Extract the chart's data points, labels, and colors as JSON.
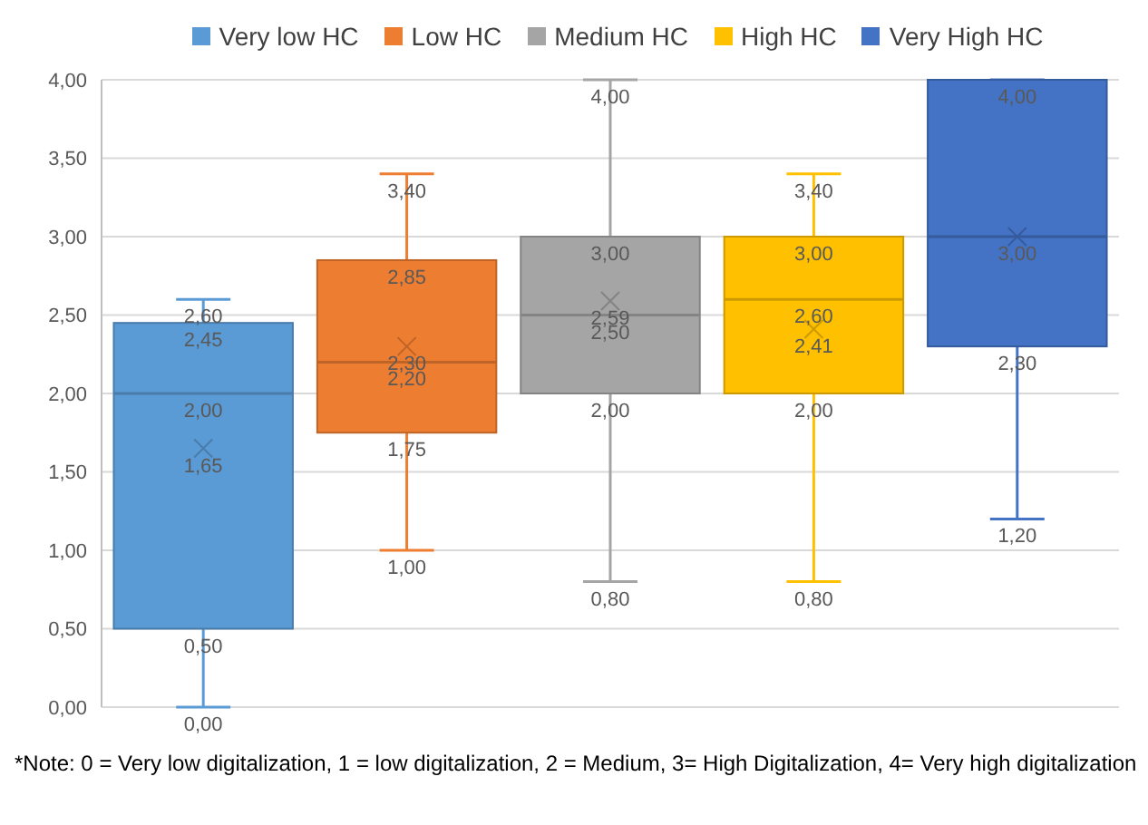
{
  "chart_data": {
    "type": "box",
    "categories": [
      null
    ],
    "series": [
      {
        "name": "Very low HC",
        "color": "#5b9bd5",
        "boxes": [
          {
            "low": 0.0,
            "q1": 0.5,
            "median": 2.0,
            "q3": 2.45,
            "high": 2.6,
            "mean": 1.65
          }
        ],
        "value_labels": [
          [
            "0,00",
            "0,50",
            "2,00",
            "2,45",
            "2,60",
            "1,65"
          ]
        ]
      },
      {
        "name": "Low HC",
        "color": "#ed7d31",
        "boxes": [
          {
            "low": 1.0,
            "q1": 1.75,
            "median": 2.2,
            "q3": 2.85,
            "high": 3.4,
            "mean": 2.3
          }
        ],
        "value_labels": [
          [
            "1,00",
            "1,75",
            "2,20",
            "2,85",
            "3,40",
            "2,30"
          ]
        ]
      },
      {
        "name": "Medium HC",
        "color": "#a5a5a5",
        "boxes": [
          {
            "low": 0.8,
            "q1": 2.0,
            "median": 2.5,
            "q3": 3.0,
            "high": 4.0,
            "mean": 2.59
          }
        ],
        "value_labels": [
          [
            "0,80",
            "2,00",
            "2,50",
            "3,00",
            "4,00",
            "2,59"
          ]
        ]
      },
      {
        "name": "High HC",
        "color": "#ffc000",
        "boxes": [
          {
            "low": 0.8,
            "q1": 2.0,
            "median": 2.6,
            "q3": 3.0,
            "high": 3.4,
            "mean": 2.41
          }
        ],
        "value_labels": [
          [
            "0,80",
            "2,00",
            "2,60",
            "3,00",
            "3,40",
            "2,41"
          ]
        ]
      },
      {
        "name": "Very High HC",
        "color": "#4472c4",
        "boxes": [
          {
            "low": 1.2,
            "q1": 2.3,
            "median": 3.0,
            "q3": 4.0,
            "high": 4.0,
            "mean": 3.0
          }
        ],
        "value_labels": [
          [
            "1,20",
            "2,30",
            null,
            null,
            "4,00",
            "3,00"
          ]
        ]
      }
    ],
    "ylim": [
      0,
      4
    ],
    "yticks": [
      {
        "value": 0,
        "label": "0,00"
      },
      {
        "value": 0.5,
        "label": "0,50"
      },
      {
        "value": 1,
        "label": "1,00"
      },
      {
        "value": 1.5,
        "label": "1,50"
      },
      {
        "value": 2,
        "label": "2,00"
      },
      {
        "value": 2.5,
        "label": "2,50"
      },
      {
        "value": 3,
        "label": "3,00"
      },
      {
        "value": 3.5,
        "label": "3,50"
      },
      {
        "value": 4,
        "label": "4,00"
      }
    ],
    "grid": "y",
    "legend": "top",
    "marker": "cross",
    "annotations": [
      "*Note: 0 = Very low digitalization, 1 = low digitalization, 2 = Medium, 3= High Digitalization, 4= Very high digitalization"
    ]
  }
}
